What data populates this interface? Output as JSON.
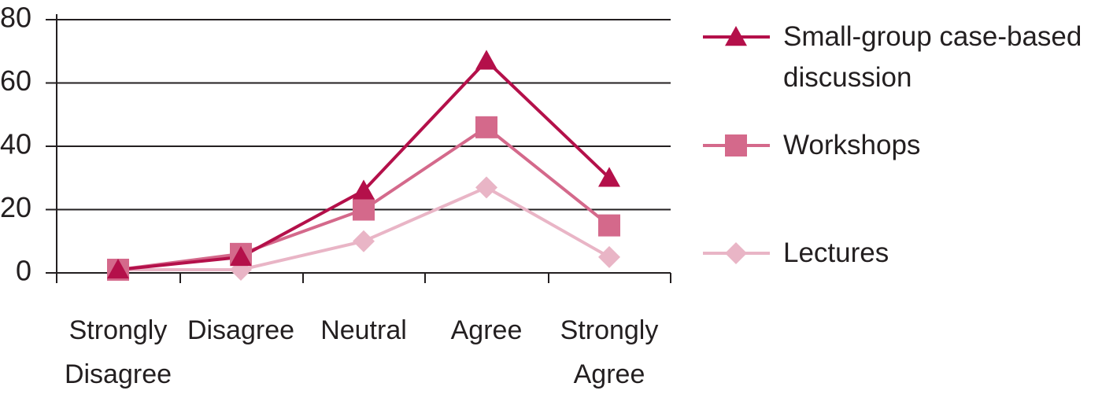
{
  "chart_data": {
    "type": "line",
    "categories": [
      "Strongly Disagree",
      "Disagree",
      "Neutral",
      "Agree",
      "Strongly Agree"
    ],
    "series": [
      {
        "name": "Small-group case-based discussion",
        "color": "#b4104a",
        "marker": "triangle",
        "values": [
          1,
          5,
          26,
          67,
          30
        ]
      },
      {
        "name": "Workshops",
        "color": "#d4698b",
        "marker": "square",
        "values": [
          1,
          6,
          20,
          46,
          15
        ]
      },
      {
        "name": "Lectures",
        "color": "#e9b5c6",
        "marker": "diamond",
        "values": [
          1,
          1,
          10,
          27,
          5
        ]
      }
    ],
    "ylim": [
      0,
      80
    ],
    "yticks": [
      0,
      20,
      40,
      60,
      80
    ],
    "grid": true,
    "legend": "right"
  }
}
